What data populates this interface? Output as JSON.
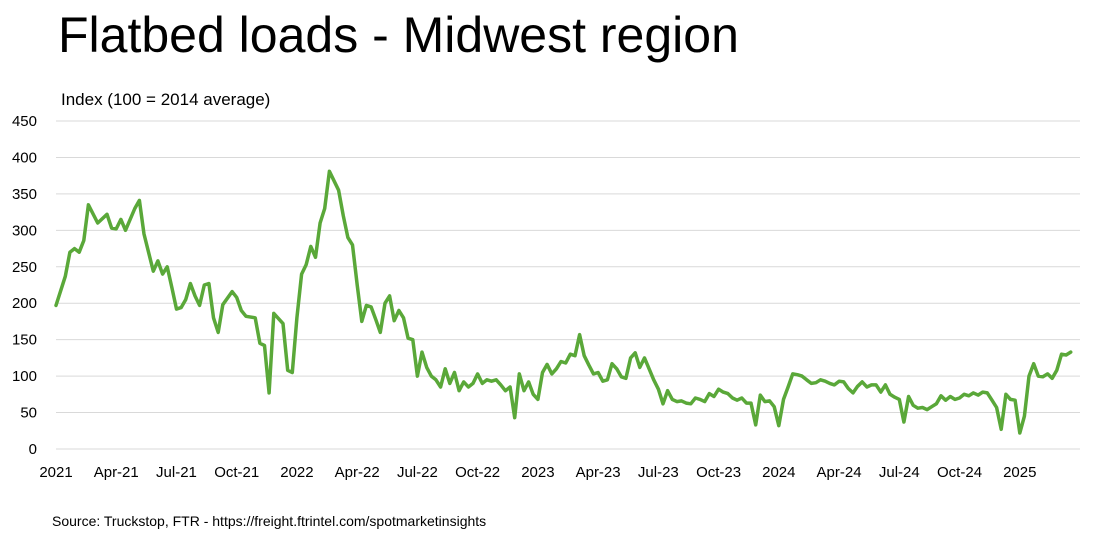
{
  "chart_data": {
    "type": "line",
    "title": "Flatbed loads - Midwest region",
    "ylabel": "Index (100 = 2014 average)",
    "source": "Source: Truckstop, FTR - https://freight.ftrintel.com/spotmarketinsights",
    "ylim": [
      0,
      450
    ],
    "y_ticks": [
      0,
      50,
      100,
      150,
      200,
      250,
      300,
      350,
      400,
      450
    ],
    "x_ticks": [
      {
        "label": "2021",
        "t": 0
      },
      {
        "label": "Apr-21",
        "t": 13
      },
      {
        "label": "Jul-21",
        "t": 26
      },
      {
        "label": "Oct-21",
        "t": 39
      },
      {
        "label": "2022",
        "t": 52
      },
      {
        "label": "Apr-22",
        "t": 65
      },
      {
        "label": "Jul-22",
        "t": 78
      },
      {
        "label": "Oct-22",
        "t": 91
      },
      {
        "label": "2023",
        "t": 104
      },
      {
        "label": "Apr-23",
        "t": 117
      },
      {
        "label": "Jul-23",
        "t": 130
      },
      {
        "label": "Oct-23",
        "t": 143
      },
      {
        "label": "2024",
        "t": 156
      },
      {
        "label": "Apr-24",
        "t": 169
      },
      {
        "label": "Jul-24",
        "t": 182
      },
      {
        "label": "Oct-24",
        "t": 195
      },
      {
        "label": "2025",
        "t": 208
      }
    ],
    "xlim": [
      0,
      221
    ],
    "grid": true,
    "line_color": "#5aa839",
    "series": [
      {
        "values": [
          [
            0,
            197
          ],
          [
            2,
            237
          ],
          [
            3,
            270
          ],
          [
            4,
            275
          ],
          [
            5,
            270
          ],
          [
            6,
            286
          ],
          [
            7,
            335
          ],
          [
            9,
            310
          ],
          [
            11,
            322
          ],
          [
            12,
            303
          ],
          [
            13,
            302
          ],
          [
            14,
            315
          ],
          [
            15,
            300
          ],
          [
            17,
            330
          ],
          [
            18,
            341
          ],
          [
            19,
            295
          ],
          [
            21,
            244
          ],
          [
            22,
            258
          ],
          [
            23,
            240
          ],
          [
            24,
            250
          ],
          [
            25,
            222
          ],
          [
            26,
            192
          ],
          [
            27,
            194
          ],
          [
            28,
            205
          ],
          [
            29,
            227
          ],
          [
            30,
            210
          ],
          [
            31,
            197
          ],
          [
            32,
            225
          ],
          [
            33,
            227
          ],
          [
            34,
            180
          ],
          [
            35,
            160
          ],
          [
            36,
            198
          ],
          [
            38,
            216
          ],
          [
            39,
            208
          ],
          [
            40,
            190
          ],
          [
            41,
            182
          ],
          [
            43,
            180
          ],
          [
            44,
            145
          ],
          [
            45,
            142
          ],
          [
            46,
            77
          ],
          [
            47,
            186
          ],
          [
            49,
            172
          ],
          [
            50,
            108
          ],
          [
            51,
            105
          ],
          [
            52,
            180
          ],
          [
            53,
            240
          ],
          [
            54,
            253
          ],
          [
            55,
            278
          ],
          [
            56,
            263
          ],
          [
            57,
            310
          ],
          [
            58,
            330
          ],
          [
            59,
            381
          ],
          [
            61,
            355
          ],
          [
            62,
            320
          ],
          [
            63,
            290
          ],
          [
            64,
            280
          ],
          [
            65,
            225
          ],
          [
            66,
            175
          ],
          [
            67,
            197
          ],
          [
            68,
            195
          ],
          [
            69,
            178
          ],
          [
            70,
            160
          ],
          [
            71,
            200
          ],
          [
            72,
            210
          ],
          [
            73,
            176
          ],
          [
            74,
            190
          ],
          [
            75,
            180
          ],
          [
            76,
            152
          ],
          [
            77,
            150
          ],
          [
            78,
            100
          ],
          [
            79,
            133
          ],
          [
            80,
            112
          ],
          [
            81,
            100
          ],
          [
            82,
            95
          ],
          [
            83,
            85
          ],
          [
            84,
            110
          ],
          [
            85,
            90
          ],
          [
            86,
            105
          ],
          [
            87,
            80
          ],
          [
            88,
            92
          ],
          [
            89,
            85
          ],
          [
            90,
            90
          ],
          [
            91,
            103
          ],
          [
            92,
            90
          ],
          [
            93,
            95
          ],
          [
            94,
            93
          ],
          [
            95,
            95
          ],
          [
            96,
            88
          ],
          [
            97,
            80
          ],
          [
            98,
            85
          ],
          [
            99,
            43
          ],
          [
            100,
            103
          ],
          [
            101,
            80
          ],
          [
            102,
            92
          ],
          [
            103,
            75
          ],
          [
            104,
            68
          ],
          [
            105,
            105
          ],
          [
            106,
            116
          ],
          [
            107,
            103
          ],
          [
            108,
            110
          ],
          [
            109,
            120
          ],
          [
            110,
            118
          ],
          [
            111,
            130
          ],
          [
            112,
            128
          ],
          [
            113,
            157
          ],
          [
            114,
            128
          ],
          [
            115,
            115
          ],
          [
            116,
            103
          ],
          [
            117,
            105
          ],
          [
            118,
            93
          ],
          [
            119,
            95
          ],
          [
            120,
            117
          ],
          [
            121,
            110
          ],
          [
            122,
            99
          ],
          [
            123,
            97
          ],
          [
            124,
            125
          ],
          [
            125,
            132
          ],
          [
            126,
            112
          ],
          [
            127,
            125
          ],
          [
            128,
            110
          ],
          [
            129,
            95
          ],
          [
            130,
            82
          ],
          [
            131,
            62
          ],
          [
            132,
            80
          ],
          [
            133,
            68
          ],
          [
            134,
            65
          ],
          [
            135,
            66
          ],
          [
            136,
            63
          ],
          [
            137,
            62
          ],
          [
            138,
            70
          ],
          [
            139,
            68
          ],
          [
            140,
            65
          ],
          [
            141,
            76
          ],
          [
            142,
            72
          ],
          [
            143,
            82
          ],
          [
            144,
            78
          ],
          [
            145,
            76
          ],
          [
            146,
            70
          ],
          [
            147,
            67
          ],
          [
            148,
            70
          ],
          [
            149,
            63
          ],
          [
            150,
            63
          ],
          [
            151,
            33
          ],
          [
            152,
            74
          ],
          [
            153,
            65
          ],
          [
            154,
            66
          ],
          [
            155,
            58
          ],
          [
            156,
            32
          ],
          [
            157,
            68
          ],
          [
            158,
            85
          ],
          [
            159,
            103
          ],
          [
            160,
            102
          ],
          [
            161,
            100
          ],
          [
            162,
            95
          ],
          [
            163,
            90
          ],
          [
            164,
            91
          ],
          [
            165,
            95
          ],
          [
            166,
            93
          ],
          [
            167,
            90
          ],
          [
            168,
            88
          ],
          [
            169,
            93
          ],
          [
            170,
            92
          ],
          [
            171,
            83
          ],
          [
            172,
            77
          ],
          [
            173,
            86
          ],
          [
            174,
            92
          ],
          [
            175,
            85
          ],
          [
            176,
            88
          ],
          [
            177,
            88
          ],
          [
            178,
            78
          ],
          [
            179,
            88
          ],
          [
            180,
            75
          ],
          [
            181,
            71
          ],
          [
            182,
            68
          ],
          [
            183,
            37
          ],
          [
            184,
            72
          ],
          [
            185,
            60
          ],
          [
            186,
            56
          ],
          [
            187,
            57
          ],
          [
            188,
            54
          ],
          [
            189,
            58
          ],
          [
            190,
            62
          ],
          [
            191,
            73
          ],
          [
            192,
            67
          ],
          [
            193,
            72
          ],
          [
            194,
            68
          ],
          [
            195,
            70
          ],
          [
            196,
            75
          ],
          [
            197,
            73
          ],
          [
            198,
            77
          ],
          [
            199,
            74
          ],
          [
            200,
            78
          ],
          [
            201,
            77
          ],
          [
            202,
            67
          ],
          [
            203,
            57
          ],
          [
            204,
            27
          ],
          [
            205,
            75
          ],
          [
            206,
            68
          ],
          [
            207,
            67
          ],
          [
            208,
            22
          ],
          [
            209,
            45
          ],
          [
            210,
            100
          ],
          [
            211,
            117
          ],
          [
            212,
            100
          ],
          [
            213,
            99
          ],
          [
            214,
            103
          ],
          [
            215,
            97
          ],
          [
            216,
            108
          ],
          [
            217,
            130
          ],
          [
            218,
            129
          ],
          [
            219,
            133
          ]
        ]
      }
    ]
  }
}
